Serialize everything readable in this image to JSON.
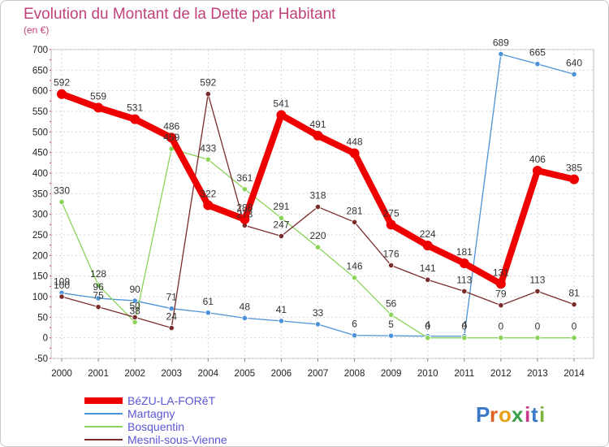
{
  "chart_data": {
    "type": "line",
    "title": "Evolution du Montant de la Dette par Habitant",
    "subtitle": "(en €)",
    "x": [
      "2000",
      "2001",
      "2002",
      "2003",
      "2004",
      "2005",
      "2006",
      "2007",
      "2008",
      "2009",
      "2010",
      "2011",
      "2012",
      "2013",
      "2014"
    ],
    "ylim": [
      -50,
      700
    ],
    "yticks": [
      -50,
      0,
      50,
      100,
      150,
      200,
      250,
      300,
      350,
      400,
      450,
      500,
      550,
      600,
      650,
      700
    ],
    "grid": true,
    "legend_position": "bottom-left",
    "series": [
      {
        "name": "BéZU-LA-FORêT",
        "color": "#ee0000",
        "values": [
          592,
          559,
          531,
          486,
          322,
          288,
          541,
          491,
          448,
          275,
          224,
          181,
          131,
          406,
          385
        ]
      },
      {
        "name": "Martagny",
        "color": "#4d93d8",
        "values": [
          109,
          96,
          90,
          71,
          61,
          48,
          41,
          33,
          6,
          5,
          4,
          4,
          689,
          665,
          640
        ]
      },
      {
        "name": "Bosquentin",
        "color": "#8bd35a",
        "values": [
          330,
          128,
          38,
          459,
          433,
          361,
          291,
          220,
          146,
          56,
          0,
          0,
          0,
          0,
          0
        ]
      },
      {
        "name": "Mesnil-sous-Vienne",
        "color": "#7a2c2c",
        "values": [
          100,
          75,
          50,
          24,
          592,
          273,
          247,
          318,
          281,
          176,
          141,
          113,
          79,
          113,
          81
        ]
      }
    ],
    "data_labels": [
      {
        "series": 0,
        "labels": [
          "592",
          "559",
          "531",
          "486",
          "322",
          "288",
          "541",
          "491",
          "448",
          "275",
          "224",
          "181",
          "131",
          "406",
          "385"
        ]
      },
      {
        "series": 1,
        "labels": [
          "109",
          "96",
          "90",
          "71",
          "61",
          "48",
          "41",
          "33",
          "6",
          "5",
          "4",
          "4",
          "689",
          "665",
          "640"
        ]
      },
      {
        "series": 2,
        "labels": [
          "330",
          "128",
          "38",
          "459",
          "433",
          "361",
          "291",
          "220",
          "146",
          "56",
          "0",
          "0",
          "0",
          "0",
          "0"
        ]
      },
      {
        "series": 3,
        "labels": [
          "100",
          "75",
          "50",
          "24",
          "592",
          "273",
          "247",
          "318",
          "281",
          "176",
          "141",
          "113",
          "79",
          "113",
          "81"
        ]
      }
    ],
    "logo": {
      "text": "Proxiti",
      "colors": [
        "#3a78c8",
        "#e0611f",
        "#e8a21a",
        "#3aa04a",
        "#c93b8a",
        "#3a78c8",
        "#7fb23a"
      ]
    }
  }
}
